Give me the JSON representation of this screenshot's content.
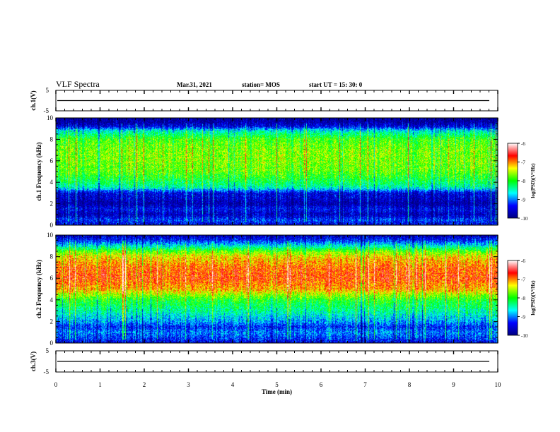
{
  "header": {
    "title": "VLF Spectra",
    "date": "Mar.31, 2021",
    "station": "station= MOS",
    "start_ut": "start UT =  15: 30: 0"
  },
  "colorbar_label": "log(PSD)(V²/Hz)",
  "colors": {
    "colormap": [
      "#000080",
      "#0000ff",
      "#00ffff",
      "#00ff00",
      "#ffff00",
      "#ff0000",
      "#ffffff"
    ]
  },
  "chart_data": [
    {
      "type": "line",
      "panel": "waveform-1",
      "ylabel": "ch.1(V)",
      "ylim": [
        -5,
        5
      ],
      "yticks": [
        "5",
        "-5"
      ],
      "x": [
        0,
        10
      ],
      "y": [
        0,
        0
      ]
    },
    {
      "type": "heatmap",
      "panel": "spectrogram-1",
      "ylabel": "ch.1 Frequency (kHz)",
      "ylim": [
        0,
        10
      ],
      "yticks": [
        "0",
        "2",
        "4",
        "6",
        "8",
        "10"
      ],
      "xlim": [
        0,
        10
      ],
      "colorbar": {
        "ticks": [
          "-6",
          "-7",
          "-8",
          "-9",
          "-10"
        ],
        "range": [
          -10,
          -6
        ]
      },
      "profile_freq_khz": [
        0,
        0.5,
        1,
        1.5,
        2,
        2.5,
        3,
        3.5,
        4,
        5,
        6,
        7,
        8,
        8.8,
        9.2,
        9.6,
        10
      ],
      "profile_log_psd": [
        -9.5,
        -9.2,
        -9.7,
        -9.4,
        -9.8,
        -9.6,
        -9.5,
        -8.5,
        -8.2,
        -7.8,
        -7.7,
        -7.7,
        -7.9,
        -8.6,
        -9.5,
        -9.8,
        -9.9
      ]
    },
    {
      "type": "heatmap",
      "panel": "spectrogram-2",
      "ylabel": "ch.2 Frequency (kHz)",
      "ylim": [
        0,
        10
      ],
      "yticks": [
        "0",
        "2",
        "4",
        "6",
        "8",
        "10"
      ],
      "xlim": [
        0,
        10
      ],
      "colorbar": {
        "ticks": [
          "-6",
          "-7",
          "-8",
          "-9",
          "-10"
        ],
        "range": [
          -10,
          -6
        ]
      },
      "profile_freq_khz": [
        0,
        0.5,
        1,
        1.5,
        2,
        3,
        4,
        5,
        6,
        7,
        8,
        8.5,
        9,
        9.5,
        10
      ],
      "profile_log_psd": [
        -9.5,
        -9.2,
        -9.0,
        -9.3,
        -8.9,
        -8.4,
        -8.0,
        -7.1,
        -6.8,
        -6.9,
        -7.3,
        -7.8,
        -8.6,
        -9.3,
        -9.7
      ]
    },
    {
      "type": "line",
      "panel": "waveform-3",
      "ylabel": "ch.3(V)",
      "ylim": [
        -5,
        5
      ],
      "yticks": [
        "5",
        "-5"
      ],
      "x": [
        0,
        10
      ],
      "y": [
        0,
        0
      ]
    }
  ],
  "x_axis": {
    "label": "Time (min)",
    "ticks": [
      "0",
      "1",
      "2",
      "3",
      "4",
      "5",
      "6",
      "7",
      "8",
      "9",
      "10"
    ],
    "range": [
      0,
      10
    ]
  }
}
